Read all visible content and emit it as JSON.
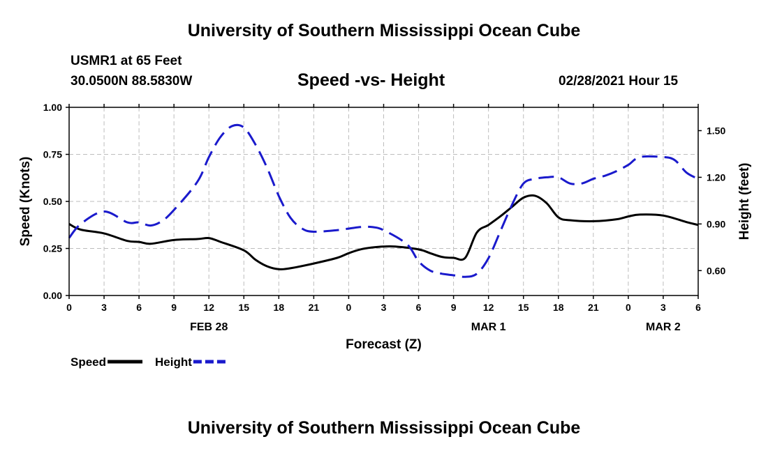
{
  "header": {
    "title_top": "University of Southern Mississippi Ocean Cube",
    "title_bottom": "University of Southern Mississippi Ocean Cube",
    "station": "USMR1 at 65 Feet",
    "location": "30.0500N 88.5830W",
    "datetime": "02/28/2021 Hour 15"
  },
  "chart_data": {
    "type": "line",
    "title": "Speed -vs- Height",
    "xlabel": "Forecast (Z)",
    "ylabel": "Speed (Knots)",
    "y2label": "Height (feet)",
    "x_range": [
      0,
      54
    ],
    "ylim": [
      0,
      1.0
    ],
    "y2lim": [
      0.44,
      1.65
    ],
    "yticks": [
      0,
      0.25,
      0.5,
      0.75,
      1.0
    ],
    "ytick_labels": [
      "0.00",
      "0.25",
      "0.50",
      "0.75",
      "1.00"
    ],
    "y2ticks": [
      0.6,
      0.9,
      1.2,
      1.5
    ],
    "y2tick_labels": [
      "0.60",
      "0.90",
      "1.20",
      "1.50"
    ],
    "xticks": [
      0,
      3,
      6,
      9,
      12,
      15,
      18,
      21,
      24,
      27,
      30,
      33,
      36,
      39,
      42,
      45,
      48,
      51,
      54
    ],
    "xtick_labels": [
      "0",
      "3",
      "6",
      "9",
      "12",
      "15",
      "18",
      "21",
      "0",
      "3",
      "6",
      "9",
      "12",
      "15",
      "18",
      "21",
      "0",
      "3",
      "6"
    ],
    "date_labels": [
      {
        "x": 12,
        "label": "FEB 28"
      },
      {
        "x": 36,
        "label": "MAR 1"
      },
      {
        "x": 51,
        "label": "MAR 2"
      }
    ],
    "grid": true,
    "series": [
      {
        "name": "Speed",
        "axis": "left",
        "color": "#000000",
        "dash": "solid",
        "x": [
          0,
          1,
          3,
          5,
          6,
          7,
          9,
          11,
          12,
          13,
          15,
          16,
          17,
          18,
          19,
          21,
          23,
          24,
          25,
          26,
          27,
          28,
          30,
          31,
          32,
          33,
          34,
          35,
          36,
          37,
          38,
          39,
          40,
          41,
          42,
          43,
          45,
          47,
          48,
          49,
          51,
          53,
          54
        ],
        "y": [
          0.38,
          0.35,
          0.33,
          0.29,
          0.285,
          0.275,
          0.295,
          0.3,
          0.305,
          0.285,
          0.24,
          0.19,
          0.155,
          0.14,
          0.145,
          0.17,
          0.2,
          0.225,
          0.245,
          0.255,
          0.26,
          0.26,
          0.245,
          0.225,
          0.205,
          0.2,
          0.2,
          0.335,
          0.375,
          0.42,
          0.47,
          0.52,
          0.53,
          0.49,
          0.415,
          0.4,
          0.395,
          0.405,
          0.42,
          0.43,
          0.425,
          0.39,
          0.375
        ]
      },
      {
        "name": "Height",
        "axis": "right",
        "color": "#1a1acc",
        "dash": "dashed",
        "x": [
          0,
          1,
          3,
          5,
          6,
          7,
          8,
          9,
          11,
          12,
          13,
          14,
          15,
          16,
          17,
          18,
          19,
          20,
          21,
          23,
          24,
          25,
          26,
          27,
          29,
          30,
          31,
          32,
          33,
          34,
          35,
          36,
          37,
          38,
          39,
          40,
          41,
          42,
          43,
          44,
          45,
          46,
          47,
          48,
          49,
          51,
          52,
          53,
          54
        ],
        "y": [
          0.81,
          0.9,
          0.98,
          0.91,
          0.91,
          0.89,
          0.92,
          0.99,
          1.17,
          1.33,
          1.46,
          1.53,
          1.52,
          1.41,
          1.26,
          1.08,
          0.94,
          0.87,
          0.85,
          0.86,
          0.87,
          0.88,
          0.88,
          0.86,
          0.77,
          0.66,
          0.6,
          0.58,
          0.57,
          0.56,
          0.58,
          0.68,
          0.85,
          1.02,
          1.16,
          1.19,
          1.2,
          1.2,
          1.16,
          1.16,
          1.19,
          1.21,
          1.24,
          1.28,
          1.33,
          1.33,
          1.31,
          1.23,
          1.19
        ]
      }
    ],
    "legend": [
      {
        "label": "Speed",
        "color": "#000000",
        "dash": "solid"
      },
      {
        "label": "Height",
        "color": "#1a1acc",
        "dash": "dashed"
      }
    ]
  }
}
